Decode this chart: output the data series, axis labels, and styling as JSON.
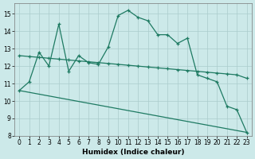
{
  "bg_color": "#cce9e9",
  "grid_color": "#aacccc",
  "line_color": "#1e7a62",
  "xlabel": "Humidex (Indice chaleur)",
  "xlim": [
    -0.5,
    23.5
  ],
  "ylim": [
    8,
    15.6
  ],
  "yticks": [
    8,
    9,
    10,
    11,
    12,
    13,
    14,
    15
  ],
  "xticks": [
    0,
    1,
    2,
    3,
    4,
    5,
    6,
    7,
    8,
    9,
    10,
    11,
    12,
    13,
    14,
    15,
    16,
    17,
    18,
    19,
    20,
    21,
    22,
    23
  ],
  "line1_x": [
    0,
    1,
    2,
    3,
    4,
    5,
    6,
    7,
    8,
    9,
    10,
    11,
    12,
    13,
    14,
    15,
    16,
    17,
    18,
    19,
    20,
    21,
    22,
    23
  ],
  "line1_y": [
    10.6,
    11.1,
    12.8,
    12.0,
    14.4,
    11.7,
    12.6,
    12.2,
    12.1,
    13.1,
    14.9,
    15.2,
    14.8,
    14.6,
    13.8,
    13.8,
    13.3,
    13.6,
    11.5,
    11.3,
    11.1,
    9.7,
    9.5,
    8.2
  ],
  "line2_x": [
    0,
    1,
    2,
    3,
    4,
    5,
    6,
    7,
    8,
    9,
    10,
    11,
    12,
    13,
    14,
    15,
    16,
    17,
    18,
    19,
    20,
    21,
    22,
    23
  ],
  "line2_y": [
    12.6,
    12.55,
    12.5,
    12.45,
    12.4,
    12.35,
    12.3,
    12.25,
    12.2,
    12.15,
    12.1,
    12.05,
    12.0,
    11.95,
    11.9,
    11.85,
    11.8,
    11.75,
    11.7,
    11.65,
    11.6,
    11.55,
    11.5,
    11.3
  ],
  "line3_x": [
    0,
    23
  ],
  "line3_y": [
    10.6,
    8.2
  ]
}
